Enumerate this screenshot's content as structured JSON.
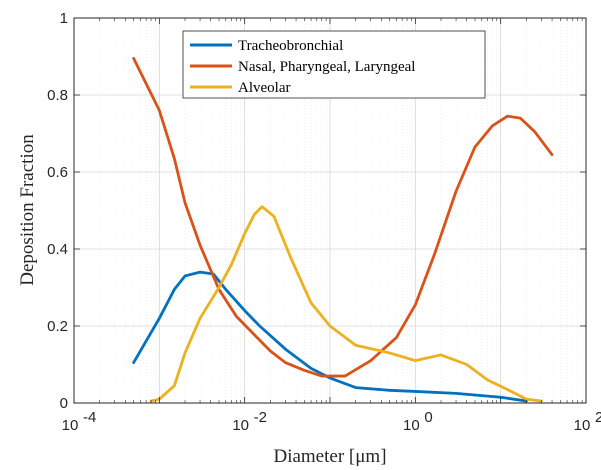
{
  "chart_data": {
    "type": "line",
    "xscale": "log",
    "xlabel": "Diameter [μm]",
    "ylabel": "Deposition Fraction",
    "xlim": [
      0.0001,
      100
    ],
    "ylim": [
      0,
      1
    ],
    "x_ticks": [
      {
        "value": 0.0001,
        "base": "10",
        "exp": "-4"
      },
      {
        "value": 0.01,
        "base": "10",
        "exp": "-2"
      },
      {
        "value": 1,
        "base": "10",
        "exp": "0"
      },
      {
        "value": 100,
        "base": "10",
        "exp": "2"
      }
    ],
    "y_ticks": [
      {
        "value": 0,
        "label": "0"
      },
      {
        "value": 0.2,
        "label": "0.2"
      },
      {
        "value": 0.4,
        "label": "0.4"
      },
      {
        "value": 0.6,
        "label": "0.6"
      },
      {
        "value": 0.8,
        "label": "0.8"
      },
      {
        "value": 1,
        "label": "1"
      }
    ],
    "grid": true,
    "minor_grid": true,
    "legend_position": "top-center",
    "series": [
      {
        "name": "Tracheobronchial",
        "color": "#0072BD",
        "points": [
          [
            0.0005,
            0.105
          ],
          [
            0.001,
            0.22
          ],
          [
            0.0015,
            0.295
          ],
          [
            0.002,
            0.33
          ],
          [
            0.003,
            0.34
          ],
          [
            0.0043,
            0.335
          ],
          [
            0.006,
            0.295
          ],
          [
            0.01,
            0.24
          ],
          [
            0.015,
            0.2
          ],
          [
            0.03,
            0.14
          ],
          [
            0.06,
            0.09
          ],
          [
            0.1,
            0.065
          ],
          [
            0.2,
            0.04
          ],
          [
            0.5,
            0.033
          ],
          [
            1,
            0.03
          ],
          [
            3,
            0.025
          ],
          [
            10,
            0.015
          ],
          [
            20,
            0.005
          ]
        ]
      },
      {
        "name": "Nasal, Pharyngeal, Laryngeal",
        "color": "#D95319",
        "points": [
          [
            0.0005,
            0.895
          ],
          [
            0.001,
            0.76
          ],
          [
            0.0015,
            0.635
          ],
          [
            0.002,
            0.52
          ],
          [
            0.003,
            0.41
          ],
          [
            0.005,
            0.295
          ],
          [
            0.008,
            0.225
          ],
          [
            0.012,
            0.185
          ],
          [
            0.02,
            0.135
          ],
          [
            0.03,
            0.105
          ],
          [
            0.05,
            0.085
          ],
          [
            0.08,
            0.07
          ],
          [
            0.15,
            0.07
          ],
          [
            0.3,
            0.11
          ],
          [
            0.6,
            0.17
          ],
          [
            1,
            0.255
          ],
          [
            1.7,
            0.39
          ],
          [
            3,
            0.55
          ],
          [
            5,
            0.665
          ],
          [
            8,
            0.72
          ],
          [
            12,
            0.745
          ],
          [
            17,
            0.74
          ],
          [
            25,
            0.705
          ],
          [
            40,
            0.645
          ]
        ]
      },
      {
        "name": "Alveolar",
        "color": "#EDB120",
        "points": [
          [
            0.0008,
            0.005
          ],
          [
            0.001,
            0.01
          ],
          [
            0.0015,
            0.045
          ],
          [
            0.002,
            0.13
          ],
          [
            0.003,
            0.22
          ],
          [
            0.005,
            0.3
          ],
          [
            0.007,
            0.36
          ],
          [
            0.01,
            0.44
          ],
          [
            0.013,
            0.49
          ],
          [
            0.016,
            0.51
          ],
          [
            0.022,
            0.485
          ],
          [
            0.035,
            0.375
          ],
          [
            0.06,
            0.26
          ],
          [
            0.1,
            0.2
          ],
          [
            0.2,
            0.15
          ],
          [
            0.5,
            0.13
          ],
          [
            1,
            0.11
          ],
          [
            2,
            0.125
          ],
          [
            4,
            0.1
          ],
          [
            7,
            0.06
          ],
          [
            12,
            0.035
          ],
          [
            20,
            0.01
          ],
          [
            30,
            0.005
          ]
        ]
      }
    ]
  }
}
